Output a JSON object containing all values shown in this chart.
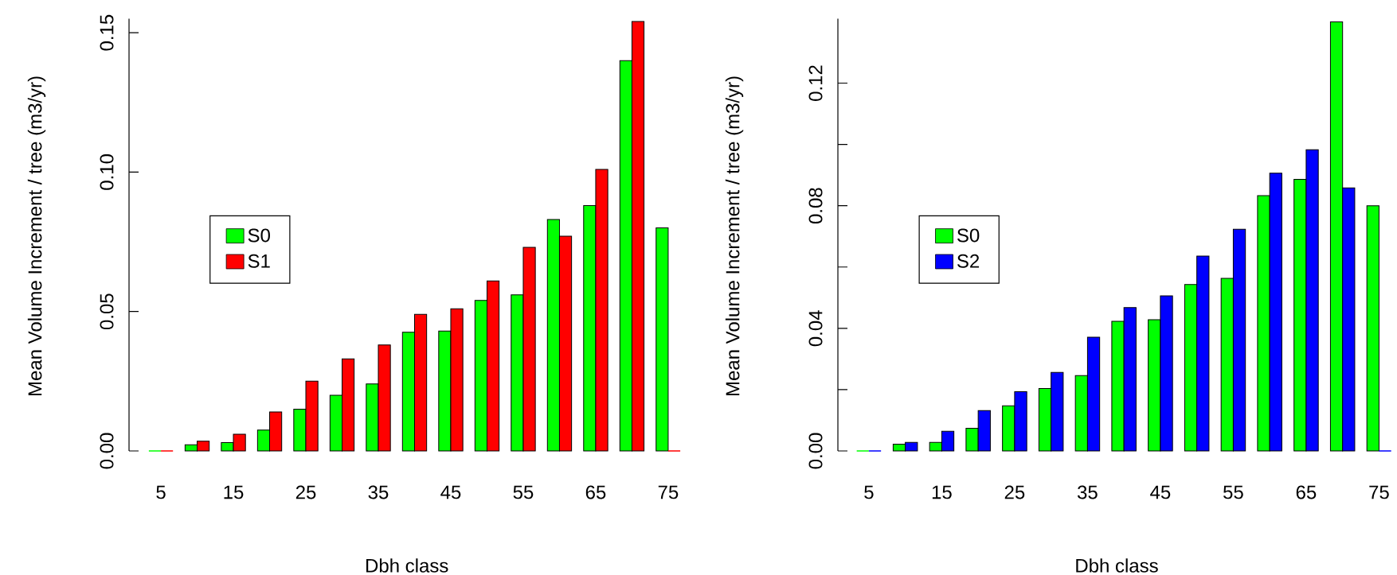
{
  "chart_data": [
    {
      "type": "bar",
      "xlabel": "Dbh class",
      "ylabel": "Mean Volume Increment / tree (m3/yr)",
      "categories": [
        "5",
        null,
        "15",
        null,
        "25",
        null,
        "35",
        null,
        "45",
        null,
        "55",
        null,
        "65",
        null,
        "75"
      ],
      "series": [
        {
          "name": "S0",
          "color": "#00ff00",
          "values": [
            0,
            0.0022,
            0.003,
            0.0075,
            0.015,
            0.02,
            0.024,
            0.0426,
            0.043,
            0.054,
            0.056,
            0.083,
            0.088,
            0.14,
            0.08
          ]
        },
        {
          "name": "S1",
          "color": "#ff0000",
          "values": [
            0,
            0.0035,
            0.006,
            0.014,
            0.025,
            0.033,
            0.038,
            0.049,
            0.051,
            0.061,
            0.073,
            0.077,
            0.101,
            0.154,
            0
          ]
        }
      ],
      "ylim": [
        0,
        0.155
      ],
      "yticks": [
        {
          "value": 0,
          "label": "0.00"
        },
        {
          "value": 0.05,
          "label": "0.05"
        },
        {
          "value": 0.1,
          "label": "0.10"
        },
        {
          "value": 0.15,
          "label": "0.15"
        }
      ],
      "legend": "left"
    },
    {
      "type": "bar",
      "xlabel": "Dbh class",
      "ylabel": "Mean Volume Increment / tree (m3/yr)",
      "categories": [
        "5",
        null,
        "15",
        null,
        "25",
        null,
        "35",
        null,
        "45",
        null,
        "55",
        null,
        "65",
        null,
        "75"
      ],
      "series": [
        {
          "name": "S0",
          "color": "#00ff00",
          "values": [
            0,
            0.0022,
            0.0028,
            0.0074,
            0.0147,
            0.0204,
            0.0246,
            0.0423,
            0.0428,
            0.0543,
            0.0563,
            0.0833,
            0.0886,
            0.14,
            0.08
          ]
        },
        {
          "name": "S2",
          "color": "#0000ff",
          "values": [
            0,
            0.0028,
            0.0064,
            0.0132,
            0.0193,
            0.0256,
            0.0371,
            0.0468,
            0.0506,
            0.0636,
            0.0723,
            0.0906,
            0.0983,
            0.0858,
            0
          ]
        }
      ],
      "ylim": [
        0,
        0.141
      ],
      "yticks": [
        {
          "value": 0,
          "label": "0.00"
        },
        {
          "value": 0.02,
          "label": null
        },
        {
          "value": 0.04,
          "label": "0.04"
        },
        {
          "value": 0.06,
          "label": null
        },
        {
          "value": 0.08,
          "label": "0.08"
        },
        {
          "value": 0.1,
          "label": null
        },
        {
          "value": 0.12,
          "label": "0.12"
        }
      ],
      "legend": "left"
    }
  ]
}
